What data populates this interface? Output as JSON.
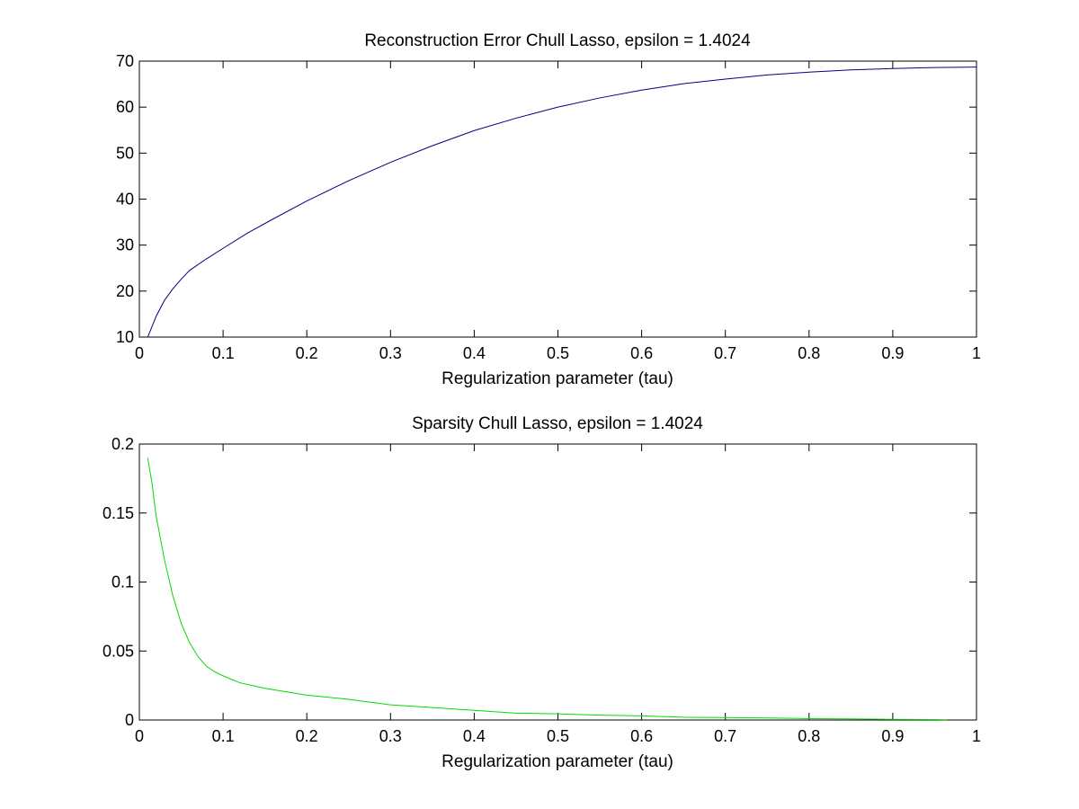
{
  "chart_data": [
    {
      "type": "line",
      "title": "Reconstruction Error Chull Lasso, epsilon = 1.4024",
      "xlabel": "Regularization parameter (tau)",
      "ylabel": "",
      "xlim": [
        0,
        1
      ],
      "ylim": [
        10,
        70
      ],
      "xticks": [
        "0",
        "0.1",
        "0.2",
        "0.3",
        "0.4",
        "0.5",
        "0.6",
        "0.7",
        "0.8",
        "0.9",
        "1"
      ],
      "yticks": [
        "10",
        "20",
        "30",
        "40",
        "50",
        "60",
        "70"
      ],
      "grid": false,
      "series": [
        {
          "color": "#00007f",
          "x": [
            0.01,
            0.02,
            0.03,
            0.04,
            0.05,
            0.06,
            0.08,
            0.1,
            0.13,
            0.16,
            0.2,
            0.25,
            0.3,
            0.35,
            0.4,
            0.45,
            0.5,
            0.55,
            0.6,
            0.65,
            0.7,
            0.75,
            0.8,
            0.85,
            0.9,
            0.95,
            1.0
          ],
          "y": [
            10,
            14.5,
            18,
            20.5,
            22.6,
            24.5,
            27,
            29.3,
            32.7,
            35.7,
            39.6,
            44,
            48,
            51.6,
            54.9,
            57.6,
            60,
            62,
            63.7,
            65.1,
            66.1,
            67,
            67.6,
            68.1,
            68.4,
            68.6,
            68.7
          ]
        }
      ]
    },
    {
      "type": "line",
      "title": "Sparsity Chull Lasso, epsilon = 1.4024",
      "xlabel": "Regularization parameter (tau)",
      "ylabel": "",
      "xlim": [
        0,
        1
      ],
      "ylim": [
        0,
        0.2
      ],
      "xticks": [
        "0",
        "0.1",
        "0.2",
        "0.3",
        "0.4",
        "0.5",
        "0.6",
        "0.7",
        "0.8",
        "0.9",
        "1"
      ],
      "yticks": [
        "0",
        "0.05",
        "0.1",
        "0.15",
        "0.2"
      ],
      "grid": false,
      "series": [
        {
          "color": "#00dd00",
          "x": [
            0.01,
            0.015,
            0.02,
            0.03,
            0.04,
            0.05,
            0.06,
            0.07,
            0.08,
            0.09,
            0.1,
            0.12,
            0.15,
            0.2,
            0.25,
            0.3,
            0.35,
            0.4,
            0.45,
            0.5,
            0.55,
            0.6,
            0.65,
            0.7,
            0.75,
            0.8,
            0.85,
            0.9,
            0.95,
            0.965
          ],
          "y": [
            0.19,
            0.172,
            0.148,
            0.116,
            0.09,
            0.07,
            0.056,
            0.046,
            0.039,
            0.035,
            0.032,
            0.027,
            0.023,
            0.018,
            0.015,
            0.011,
            0.009,
            0.007,
            0.005,
            0.0045,
            0.0035,
            0.003,
            0.002,
            0.0018,
            0.0015,
            0.001,
            0.0008,
            0.0005,
            0.0003,
            0.0002
          ]
        }
      ]
    }
  ]
}
